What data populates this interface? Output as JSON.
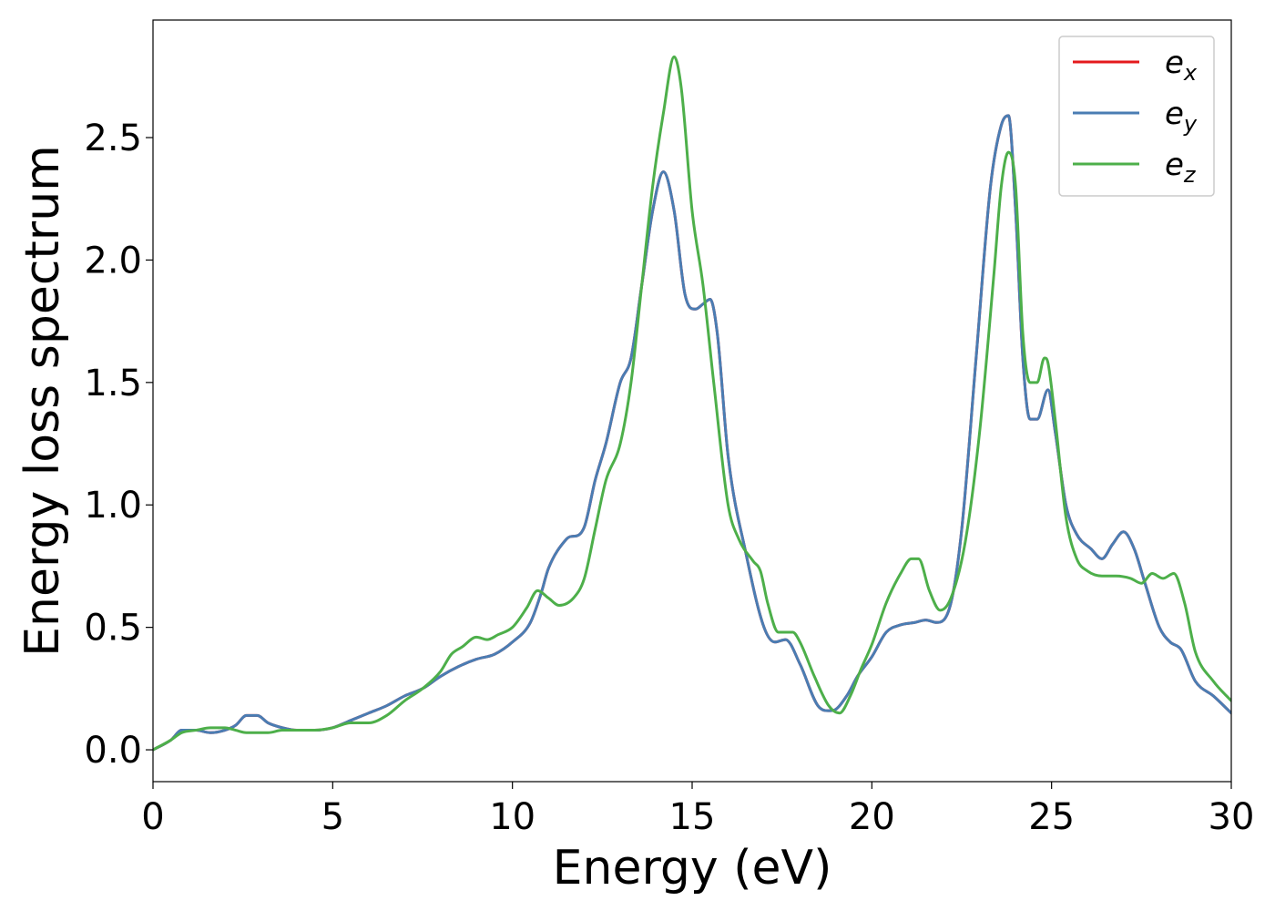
{
  "chart_data": {
    "type": "line",
    "title": "",
    "xlabel": "Energy (eV)",
    "ylabel": "Energy loss spectrum",
    "xlim": [
      0,
      30
    ],
    "ylim": [
      -0.13,
      2.98
    ],
    "x_ticks": [
      0,
      5,
      10,
      15,
      20,
      25,
      30
    ],
    "y_ticks": [
      0.0,
      0.5,
      1.0,
      1.5,
      2.0,
      2.5
    ],
    "x_tick_labels": [
      "0",
      "5",
      "10",
      "15",
      "20",
      "25",
      "30"
    ],
    "y_tick_labels": [
      "0.0",
      "0.5",
      "1.0",
      "1.5",
      "2.0",
      "2.5"
    ],
    "grid": false,
    "legend_position": "top-right",
    "series": [
      {
        "name": "e_x",
        "label_base": "e",
        "label_sub": "x",
        "color": "#e41a1c",
        "x": [
          0,
          0.5,
          0.8,
          1.2,
          1.6,
          2.0,
          2.3,
          2.6,
          2.9,
          3.2,
          3.6,
          4.0,
          4.5,
          5.0,
          5.5,
          6.0,
          6.5,
          7.0,
          7.5,
          8.0,
          8.5,
          9.0,
          9.5,
          10.0,
          10.5,
          10.8,
          11.0,
          11.5,
          12.0,
          12.3,
          12.6,
          13.0,
          13.3,
          13.6,
          13.9,
          14.2,
          14.5,
          14.8,
          15.1,
          15.3,
          15.5,
          15.7,
          16.0,
          16.5,
          17.0,
          17.3,
          17.6,
          18.0,
          18.5,
          18.9,
          19.3,
          19.6,
          20.0,
          20.4,
          20.8,
          21.2,
          21.5,
          21.8,
          22.2,
          22.5,
          22.9,
          23.3,
          23.6,
          23.8,
          24.0,
          24.2,
          24.4,
          24.6,
          24.9,
          25.1,
          25.4,
          25.7,
          26.1,
          26.4,
          26.7,
          27.0,
          27.3,
          27.6,
          28.0,
          28.3,
          28.6,
          29.0,
          29.5,
          30.0
        ],
        "y": [
          0.0,
          0.04,
          0.08,
          0.08,
          0.07,
          0.08,
          0.1,
          0.14,
          0.14,
          0.11,
          0.09,
          0.08,
          0.08,
          0.09,
          0.12,
          0.15,
          0.18,
          0.22,
          0.25,
          0.3,
          0.34,
          0.37,
          0.39,
          0.44,
          0.52,
          0.64,
          0.74,
          0.86,
          0.91,
          1.1,
          1.25,
          1.5,
          1.6,
          1.9,
          2.2,
          2.36,
          2.2,
          1.86,
          1.8,
          1.82,
          1.84,
          1.7,
          1.2,
          0.8,
          0.5,
          0.44,
          0.45,
          0.35,
          0.18,
          0.16,
          0.22,
          0.3,
          0.38,
          0.48,
          0.51,
          0.52,
          0.53,
          0.52,
          0.6,
          0.9,
          1.6,
          2.3,
          2.55,
          2.59,
          2.2,
          1.6,
          1.35,
          1.35,
          1.47,
          1.3,
          1.0,
          0.88,
          0.82,
          0.78,
          0.84,
          0.89,
          0.82,
          0.68,
          0.5,
          0.44,
          0.41,
          0.28,
          0.22,
          0.15
        ]
      },
      {
        "name": "e_y",
        "label_base": "e",
        "label_sub": "y",
        "color": "#4a7db3",
        "x": [
          0,
          0.5,
          0.8,
          1.2,
          1.6,
          2.0,
          2.3,
          2.6,
          2.9,
          3.2,
          3.6,
          4.0,
          4.5,
          5.0,
          5.5,
          6.0,
          6.5,
          7.0,
          7.5,
          8.0,
          8.5,
          9.0,
          9.5,
          10.0,
          10.5,
          10.8,
          11.0,
          11.5,
          12.0,
          12.3,
          12.6,
          13.0,
          13.3,
          13.6,
          13.9,
          14.2,
          14.5,
          14.8,
          15.1,
          15.3,
          15.5,
          15.7,
          16.0,
          16.5,
          17.0,
          17.3,
          17.6,
          18.0,
          18.5,
          18.9,
          19.3,
          19.6,
          20.0,
          20.4,
          20.8,
          21.2,
          21.5,
          21.8,
          22.2,
          22.5,
          22.9,
          23.3,
          23.6,
          23.8,
          24.0,
          24.2,
          24.4,
          24.6,
          24.9,
          25.1,
          25.4,
          25.7,
          26.1,
          26.4,
          26.7,
          27.0,
          27.3,
          27.6,
          28.0,
          28.3,
          28.6,
          29.0,
          29.5,
          30.0
        ],
        "y": [
          0.0,
          0.04,
          0.08,
          0.08,
          0.07,
          0.08,
          0.1,
          0.14,
          0.14,
          0.11,
          0.09,
          0.08,
          0.08,
          0.09,
          0.12,
          0.15,
          0.18,
          0.22,
          0.25,
          0.3,
          0.34,
          0.37,
          0.39,
          0.44,
          0.52,
          0.64,
          0.74,
          0.86,
          0.91,
          1.1,
          1.25,
          1.5,
          1.6,
          1.9,
          2.2,
          2.36,
          2.2,
          1.86,
          1.8,
          1.82,
          1.84,
          1.7,
          1.2,
          0.8,
          0.5,
          0.44,
          0.45,
          0.35,
          0.18,
          0.16,
          0.22,
          0.3,
          0.38,
          0.48,
          0.51,
          0.52,
          0.53,
          0.52,
          0.6,
          0.9,
          1.6,
          2.3,
          2.55,
          2.59,
          2.2,
          1.6,
          1.35,
          1.35,
          1.47,
          1.3,
          1.0,
          0.88,
          0.82,
          0.78,
          0.84,
          0.89,
          0.82,
          0.68,
          0.5,
          0.44,
          0.41,
          0.28,
          0.22,
          0.15
        ]
      },
      {
        "name": "e_z",
        "label_base": "e",
        "label_sub": "z",
        "color": "#4daf4a",
        "x": [
          0,
          0.5,
          0.8,
          1.2,
          1.6,
          2.0,
          2.3,
          2.6,
          2.9,
          3.2,
          3.6,
          4.0,
          4.5,
          5.0,
          5.5,
          6.0,
          6.5,
          7.0,
          7.5,
          8.0,
          8.3,
          8.6,
          9.0,
          9.3,
          9.6,
          10.0,
          10.4,
          10.7,
          11.0,
          11.3,
          11.7,
          12.0,
          12.3,
          12.6,
          13.0,
          13.3,
          13.6,
          13.9,
          14.2,
          14.5,
          14.7,
          15.0,
          15.3,
          15.6,
          16.0,
          16.3,
          16.7,
          16.9,
          17.1,
          17.4,
          17.8,
          18.0,
          18.4,
          18.8,
          19.1,
          19.4,
          19.7,
          20.0,
          20.4,
          20.8,
          21.1,
          21.3,
          21.6,
          21.9,
          22.2,
          22.6,
          23.0,
          23.4,
          23.6,
          23.8,
          24.0,
          24.2,
          24.4,
          24.6,
          24.8,
          24.9,
          25.1,
          25.4,
          25.7,
          26.0,
          26.4,
          26.8,
          27.2,
          27.5,
          27.8,
          28.1,
          28.4,
          28.7,
          29.0,
          29.5,
          30.0
        ],
        "y": [
          0.0,
          0.04,
          0.07,
          0.08,
          0.09,
          0.09,
          0.08,
          0.07,
          0.07,
          0.07,
          0.08,
          0.08,
          0.08,
          0.09,
          0.11,
          0.11,
          0.14,
          0.2,
          0.25,
          0.32,
          0.39,
          0.42,
          0.46,
          0.45,
          0.47,
          0.5,
          0.58,
          0.65,
          0.62,
          0.59,
          0.62,
          0.7,
          0.9,
          1.1,
          1.25,
          1.5,
          1.9,
          2.3,
          2.6,
          2.83,
          2.7,
          2.2,
          1.9,
          1.5,
          1.0,
          0.86,
          0.77,
          0.73,
          0.6,
          0.48,
          0.48,
          0.44,
          0.3,
          0.18,
          0.15,
          0.22,
          0.33,
          0.43,
          0.6,
          0.72,
          0.78,
          0.78,
          0.65,
          0.57,
          0.62,
          0.85,
          1.3,
          1.95,
          2.3,
          2.44,
          2.3,
          1.7,
          1.5,
          1.5,
          1.6,
          1.58,
          1.35,
          0.95,
          0.78,
          0.73,
          0.71,
          0.71,
          0.7,
          0.68,
          0.72,
          0.7,
          0.72,
          0.6,
          0.4,
          0.28,
          0.2
        ]
      }
    ]
  }
}
